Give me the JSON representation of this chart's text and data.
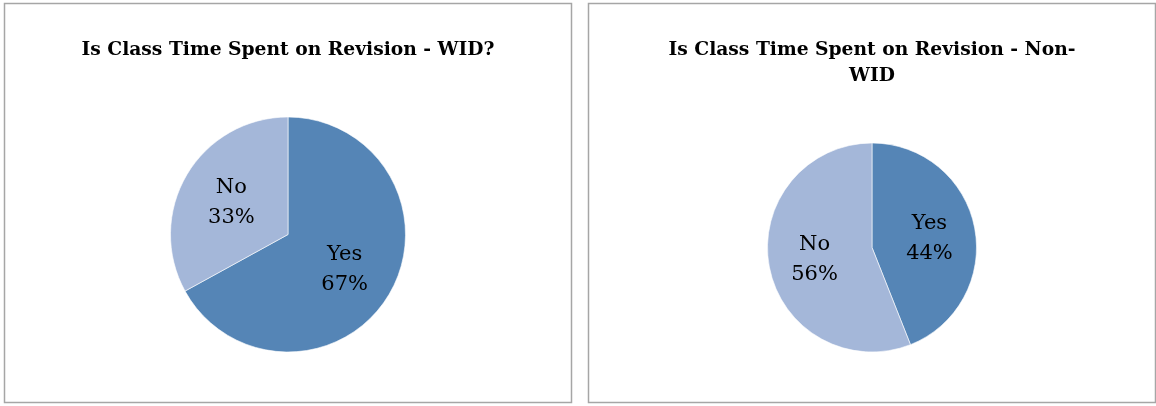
{
  "chart_data": [
    {
      "type": "pie",
      "title": "Is Class Time Spent on Revision - WID?",
      "categories": [
        "Yes",
        "No"
      ],
      "values": [
        67,
        33
      ],
      "colors": [
        "#5585b6",
        "#a4b7d9"
      ],
      "value_labels": [
        "67%",
        "33%"
      ]
    },
    {
      "type": "pie",
      "title": "Is Class Time Spent on Revision - Non-WID",
      "categories": [
        "Yes",
        "No"
      ],
      "values": [
        44,
        56
      ],
      "colors": [
        "#5585b6",
        "#a4b7d9"
      ],
      "value_labels": [
        "44%",
        "56%"
      ]
    }
  ]
}
